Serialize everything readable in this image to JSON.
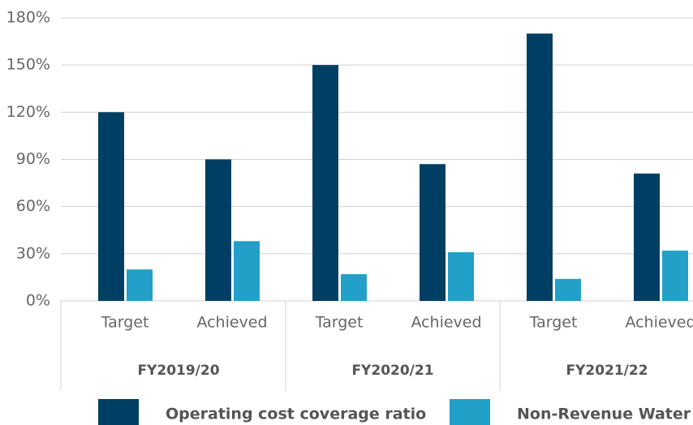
{
  "chart_data": {
    "type": "bar",
    "categories": [
      "Target",
      "Achieved",
      "Target",
      "Achieved",
      "Target",
      "Achieved"
    ],
    "groups": [
      "FY2019/20",
      "FY2020/21",
      "FY2021/22"
    ],
    "series": [
      {
        "name": "Operating cost coverage ratio",
        "color": "#003f63",
        "values": [
          120,
          90,
          150,
          87,
          170,
          81
        ]
      },
      {
        "name": "Non-Revenue Water",
        "color": "#23a0c8",
        "values": [
          20,
          38,
          17,
          31,
          14,
          32
        ]
      }
    ],
    "ylim": [
      0,
      180
    ],
    "yticks": [
      {
        "value": 0,
        "label": "0%"
      },
      {
        "value": 30,
        "label": "30%"
      },
      {
        "value": 60,
        "label": "60%"
      },
      {
        "value": 90,
        "label": "90%"
      },
      {
        "value": 120,
        "label": "120%"
      },
      {
        "value": 150,
        "label": "150%"
      },
      {
        "value": 180,
        "label": "180%"
      }
    ],
    "grid": true,
    "legend": "bottom"
  }
}
